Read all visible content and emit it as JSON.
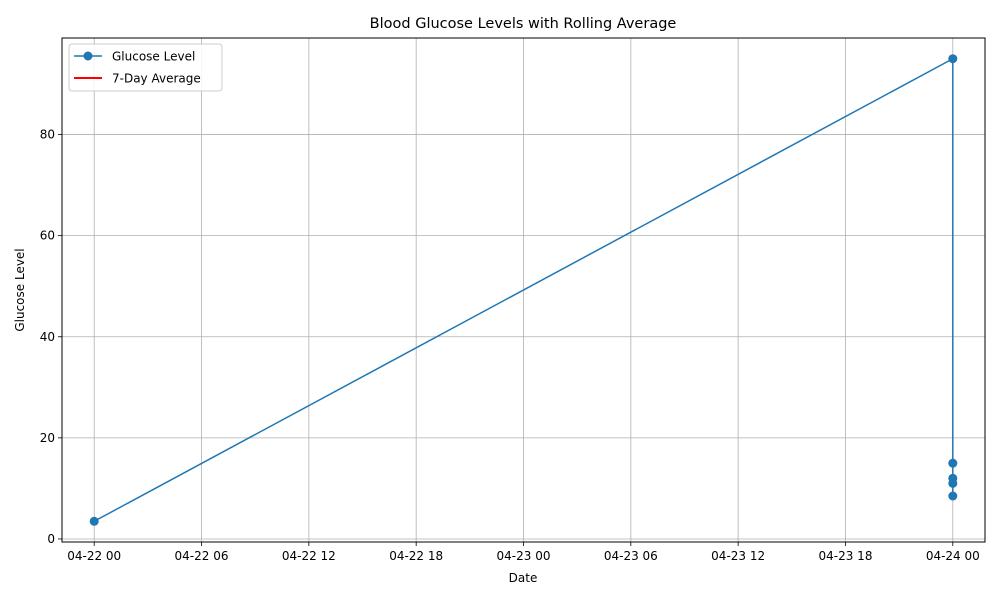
{
  "chart_data": {
    "type": "line",
    "title": "Blood Glucose Levels with Rolling Average",
    "xlabel": "Date",
    "ylabel": "Glucose Level",
    "x_range_hours": [
      -1.8,
      49.8
    ],
    "x_ticks": [
      {
        "h": 0,
        "label": "04-22 00"
      },
      {
        "h": 6,
        "label": "04-22 06"
      },
      {
        "h": 12,
        "label": "04-22 12"
      },
      {
        "h": 18,
        "label": "04-22 18"
      },
      {
        "h": 24,
        "label": "04-23 00"
      },
      {
        "h": 30,
        "label": "04-23 06"
      },
      {
        "h": 36,
        "label": "04-23 12"
      },
      {
        "h": 42,
        "label": "04-23 18"
      },
      {
        "h": 48,
        "label": "04-24 00"
      }
    ],
    "ylim": [
      -0.6,
      99.1
    ],
    "y_ticks": [
      0,
      20,
      40,
      60,
      80
    ],
    "grid": true,
    "legend_placement": "upper-left",
    "series": [
      {
        "name": "Glucose Level",
        "color": "#1f77b4",
        "marker": "circle",
        "points": [
          {
            "h": 0,
            "y": 3.5
          },
          {
            "h": 48,
            "y": 95
          },
          {
            "h": 48,
            "y": 15
          },
          {
            "h": 48,
            "y": 12
          },
          {
            "h": 48,
            "y": 11
          },
          {
            "h": 48,
            "y": 8.5
          }
        ]
      },
      {
        "name": "7-Day Average",
        "color": "#ff0000",
        "marker": "none",
        "points": []
      }
    ]
  }
}
